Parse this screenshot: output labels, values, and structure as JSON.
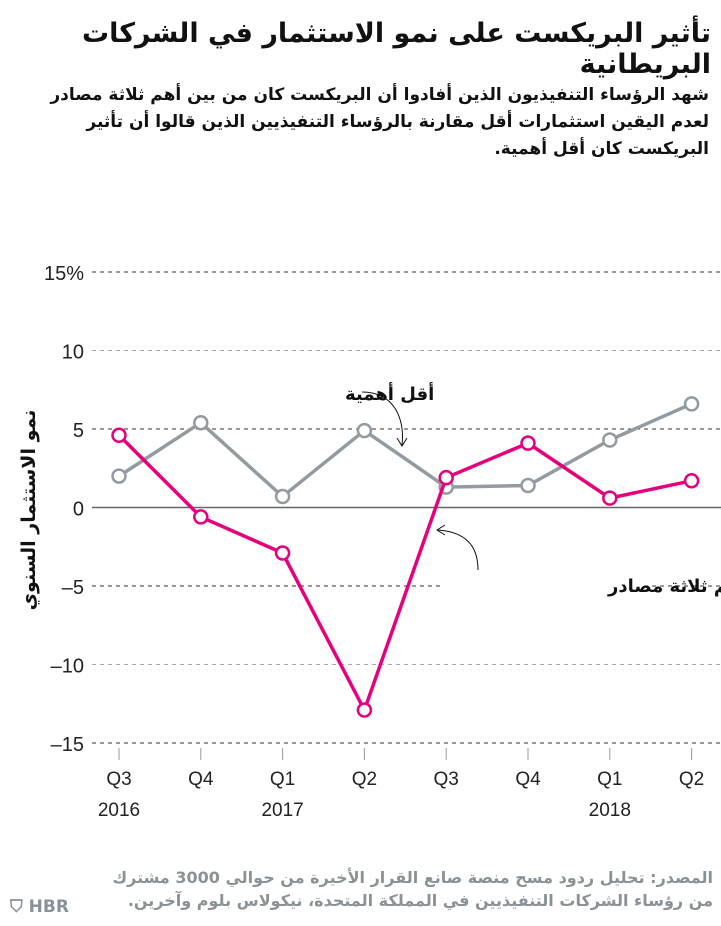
{
  "title": "تأثير البريكست على نمو الاستثمار في الشركات البريطانية",
  "subtitle": "شهد الرؤساء التنفيذيون الذين أفادوا أن البريكست كان من بين أهم ثلاثة مصادر لعدم اليقين استثمارات أقل مقارنة بالرؤساء التنفيذيين الذين قالوا أن تأثير البريكست كان أقل أهمية.",
  "source": "المصدر: تحليل ردود مسح منصة صانع القرار الأخيرة من حوالي 3000 مشترك من رؤساء الشركات التنفيذيين في المملكة المتحدة، نيكولاس بلوم وآخرين.",
  "logo": "HBR",
  "colors": {
    "less": "#939ba0",
    "top3": "#e5007e"
  },
  "chart_data": {
    "type": "line",
    "ylabel": "نمو الاستثمار السنوي",
    "ylim": [
      -15,
      15
    ],
    "yticks": [
      15,
      10,
      5,
      0,
      -5,
      -10,
      -15
    ],
    "ytick_labels": [
      "15%",
      "10",
      "5",
      "0",
      "–5",
      "–10",
      "–15"
    ],
    "categories": [
      "Q3",
      "Q4",
      "Q1",
      "Q2",
      "Q3",
      "Q4",
      "Q1",
      "Q2"
    ],
    "year_labels": [
      {
        "index": 0,
        "label": "2016"
      },
      {
        "index": 2,
        "label": "2017"
      },
      {
        "index": 6,
        "label": "2018"
      }
    ],
    "grid": true,
    "series": [
      {
        "name": "أقل أهمية",
        "values": [
          2.0,
          5.4,
          0.7,
          4.9,
          1.3,
          1.4,
          4.3,
          6.6
        ]
      },
      {
        "name": "أهم ثلاثة مصادر",
        "values": [
          4.6,
          -0.6,
          -2.9,
          -12.9,
          1.9,
          4.1,
          0.6,
          1.7
        ]
      }
    ]
  }
}
